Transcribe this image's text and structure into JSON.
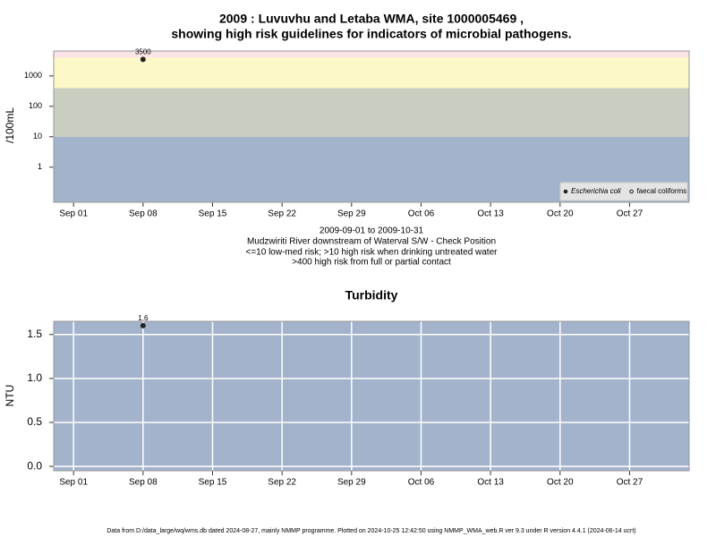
{
  "chart_data": [
    {
      "type": "scatter",
      "title": [
        "2009 : Luvuvhu and Letaba WMA, site 1000005469 ,",
        "showing high risk guidelines for indicators of microbial pathogens."
      ],
      "ylabel": "/100mL",
      "log_y": true,
      "ylim": [
        0.07,
        6600
      ],
      "yticks": [
        1,
        10,
        100,
        1000
      ],
      "xlim": [
        "Aug 30",
        "Nov 02"
      ],
      "xticks": [
        "Sep 01",
        "Sep 08",
        "Sep 15",
        "Sep 22",
        "Sep 29",
        "Oct 06",
        "Oct 13",
        "Oct 20",
        "Oct 27"
      ],
      "background": "#fbe3e8",
      "bands": [
        {
          "to": 10,
          "color": "#a3b3cc"
        },
        {
          "to": 400,
          "color": "#c8cfc0"
        },
        {
          "to": 4000,
          "color": "#fdf8c8"
        }
      ],
      "grid": false,
      "legend": "lower right",
      "x": [
        "Sep 08"
      ],
      "series": [
        {
          "name": "Escherichia coli",
          "color": "#222222",
          "filled": true,
          "values": [
            3500
          ]
        },
        {
          "name": "faecal coliforms",
          "color": "#222222",
          "filled": false,
          "values": [
            null
          ]
        }
      ],
      "caption": [
        "2009-09-01 to 2009-10-31",
        "Mudzwiriti River downstream of Waterval S/W - Check Position",
        "<=10 low-med risk; >10 high risk when drinking untreated water",
        ">400 high risk from full or partial contact"
      ]
    },
    {
      "type": "scatter",
      "title": [
        "Turbidity"
      ],
      "ylabel": "NTU",
      "log_y": false,
      "ylim": [
        -0.05,
        1.65
      ],
      "yticks": [
        {
          "value": 0,
          "label": "0.0"
        },
        {
          "value": 0.5,
          "label": "0.5"
        },
        {
          "value": 1,
          "label": "1.0"
        },
        {
          "value": 1.5,
          "label": "1.5"
        }
      ],
      "xlim": [
        "Aug 30",
        "Nov 02"
      ],
      "xticks": [
        "Sep 01",
        "Sep 08",
        "Sep 15",
        "Sep 22",
        "Sep 29",
        "Oct 06",
        "Oct 13",
        "Oct 20",
        "Oct 27"
      ],
      "background": "#a3b3cc",
      "bands": [],
      "grid": true,
      "x": [
        "Sep 08"
      ],
      "series": [
        {
          "name": "Turbidity",
          "color": "#222222",
          "filled": true,
          "values": [
            1.6
          ]
        }
      ]
    }
  ],
  "footer": "Data from D:/data_large/wq/wms.db dated 2024-08-27, mainly NMMP programme. Plotted on 2024-10-25 12:42:50 using NMMP_WMA_web.R ver 9.3 under R version 4.4.1 (2024-06-14 ucrt)"
}
